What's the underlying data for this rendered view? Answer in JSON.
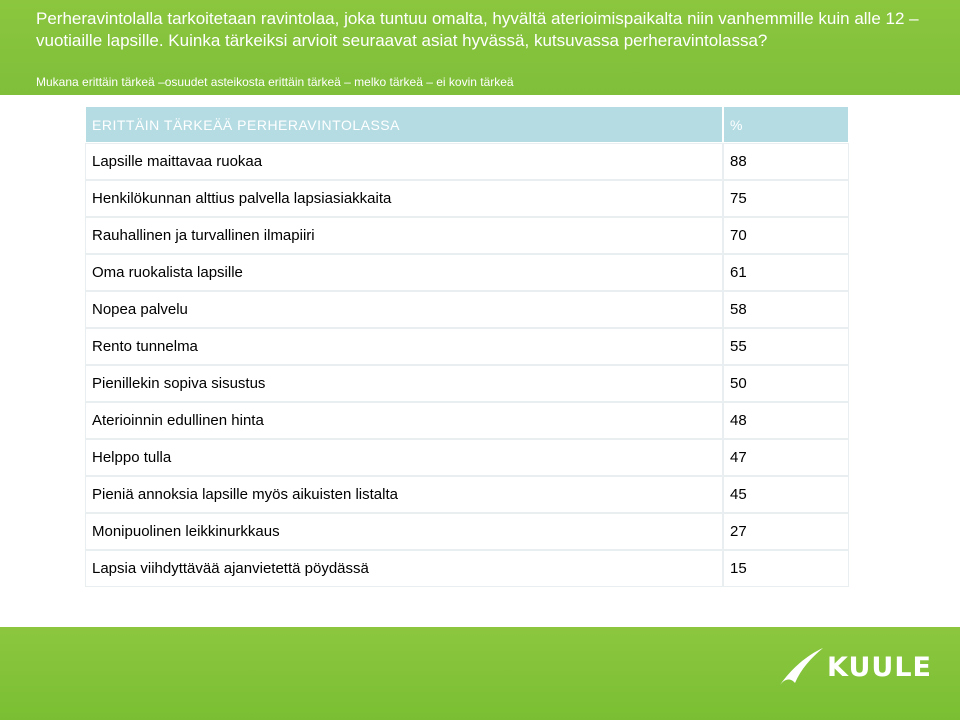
{
  "header": {
    "title": "Perheravintolalla tarkoitetaan ravintolaa, joka tuntuu omalta, hyvältä aterioimispaikalta niin vanhemmille kuin alle 12 –vuotiaille lapsille. Kuinka tärkeiksi arvioit seuraavat asiat hyvässä, kutsuvassa perheravintolassa?",
    "subtitle": "Mukana erittäin tärkeä –osuudet asteikosta erittäin tärkeä – melko tärkeä – ei kovin tärkeä"
  },
  "table": {
    "headers": [
      "ERITTÄIN TÄRKEÄÄ PERHERAVINTOLASSA",
      "%"
    ],
    "rows": [
      {
        "label": "Lapsille maittavaa ruokaa",
        "value": "88"
      },
      {
        "label": "Henkilökunnan alttius palvella lapsiasiakkaita",
        "value": "75"
      },
      {
        "label": "Rauhallinen ja turvallinen ilmapiiri",
        "value": "70"
      },
      {
        "label": "Oma ruokalista lapsille",
        "value": "61"
      },
      {
        "label": "Nopea palvelu",
        "value": "58"
      },
      {
        "label": "Rento tunnelma",
        "value": "55"
      },
      {
        "label": "Pienillekin sopiva sisustus",
        "value": "50"
      },
      {
        "label": "Aterioinnin edullinen hinta",
        "value": "48"
      },
      {
        "label": "Helppo tulla",
        "value": "47"
      },
      {
        "label": "Pieniä annoksia lapsille myös aikuisten listalta",
        "value": "45"
      },
      {
        "label": "Monipuolinen leikkinurkkaus",
        "value": "27"
      },
      {
        "label": "Lapsia viihdyttävää ajanvietettä pöydässä",
        "value": "15"
      }
    ]
  },
  "logo": {
    "text": "KUULE",
    "icon": "swoosh-icon"
  },
  "colors": {
    "brand_green": "#8cc63f",
    "header_cell": "#b5dce3"
  }
}
